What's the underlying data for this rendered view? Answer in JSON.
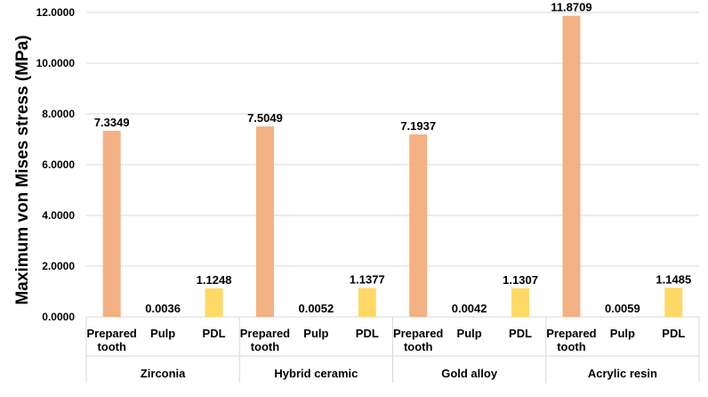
{
  "chart_data": {
    "type": "bar",
    "ylabel": "Maximum von Mises stress (MPa)",
    "xlabel": "",
    "ylim": [
      0,
      12
    ],
    "yticks": [
      "0.0000",
      "2.0000",
      "4.0000",
      "6.0000",
      "8.0000",
      "10.0000",
      "12.0000"
    ],
    "grid": true,
    "groups": [
      {
        "label": "Zirconia",
        "bars": [
          {
            "category": "Prepared tooth",
            "value": 7.3349,
            "label": "7.3349",
            "color": "#F4B183"
          },
          {
            "category": "Pulp",
            "value": 0.0036,
            "label": "0.0036",
            "color": "#F4B183"
          },
          {
            "category": "PDL",
            "value": 1.1248,
            "label": "1.1248",
            "color": "#FFD966"
          }
        ]
      },
      {
        "label": "Hybrid ceramic",
        "bars": [
          {
            "category": "Prepared tooth",
            "value": 7.5049,
            "label": "7.5049",
            "color": "#F4B183"
          },
          {
            "category": "Pulp",
            "value": 0.0052,
            "label": "0.0052",
            "color": "#F4B183"
          },
          {
            "category": "PDL",
            "value": 1.1377,
            "label": "1.1377",
            "color": "#FFD966"
          }
        ]
      },
      {
        "label": "Gold alloy",
        "bars": [
          {
            "category": "Prepared tooth",
            "value": 7.1937,
            "label": "7.1937",
            "color": "#F4B183"
          },
          {
            "category": "Pulp",
            "value": 0.0042,
            "label": "0.0042",
            "color": "#F4B183"
          },
          {
            "category": "PDL",
            "value": 1.1307,
            "label": "1.1307",
            "color": "#FFD966"
          }
        ]
      },
      {
        "label": "Acrylic resin",
        "bars": [
          {
            "category": "Prepared tooth",
            "value": 11.8709,
            "label": "11.8709",
            "color": "#F4B183"
          },
          {
            "category": "Pulp",
            "value": 0.0059,
            "label": "0.0059",
            "color": "#F4B183"
          },
          {
            "category": "PDL",
            "value": 1.1485,
            "label": "1.1485",
            "color": "#FFD966"
          }
        ]
      }
    ]
  }
}
